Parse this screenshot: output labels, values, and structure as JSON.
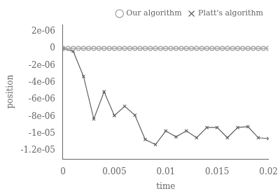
{
  "chart_data": {
    "type": "line",
    "xlabel": "time",
    "ylabel": "position",
    "xlim": [
      0,
      0.02
    ],
    "xticks": [
      0,
      0.005,
      0.01,
      0.015,
      0.02
    ],
    "ylim": [
      -1.3e-05,
      2.8e-06
    ],
    "yticks": [
      {
        "value": -1.2e-05,
        "label": "-1.2e-05"
      },
      {
        "value": -1e-05,
        "label": "-1e-05"
      },
      {
        "value": -8e-06,
        "label": "-8e-06"
      },
      {
        "value": -6e-06,
        "label": "-6e-06"
      },
      {
        "value": -4e-06,
        "label": "-4e-06"
      },
      {
        "value": -2e-06,
        "label": "-2e-06"
      },
      0,
      {
        "value": 2e-06,
        "label": "2e-06"
      }
    ],
    "grid": false,
    "legend": "upper right",
    "series": [
      {
        "name": "Our algorithm",
        "color": "#a0a0a0",
        "marker": "circle",
        "line_style": "solid",
        "x": [
          0.0,
          0.0005,
          0.001,
          0.0015,
          0.002,
          0.0025,
          0.003,
          0.0035,
          0.004,
          0.0045,
          0.005,
          0.0055,
          0.006,
          0.0065,
          0.007,
          0.0075,
          0.008,
          0.0085,
          0.009,
          0.0095,
          0.01,
          0.0105,
          0.011,
          0.0115,
          0.012,
          0.0125,
          0.013,
          0.0135,
          0.014,
          0.0145,
          0.015,
          0.0155,
          0.016,
          0.0165,
          0.017,
          0.0175,
          0.018,
          0.0185,
          0.019,
          0.0195,
          0.02
        ],
        "values": [
          0.0,
          0.0,
          0.0,
          0.0,
          0.0,
          0.0,
          0.0,
          0.0,
          0.0,
          0.0,
          0.0,
          0.0,
          0.0,
          0.0,
          0.0,
          0.0,
          0.0,
          0.0,
          0.0,
          0.0,
          0.0,
          0.0,
          0.0,
          0.0,
          0.0,
          0.0,
          0.0,
          0.0,
          0.0,
          0.0,
          0.0,
          0.0,
          0.0,
          0.0,
          0.0,
          0.0,
          0.0,
          0.0,
          0.0,
          0.0,
          0.0
        ]
      },
      {
        "name": "Platt's algorithm",
        "color": "#606060",
        "marker": "cross",
        "line_style": "solid",
        "x": [
          0.0,
          0.001,
          0.002,
          0.003,
          0.004,
          0.005,
          0.006,
          0.007,
          0.008,
          0.009,
          0.01,
          0.011,
          0.012,
          0.013,
          0.014,
          0.015,
          0.016,
          0.017,
          0.018,
          0.019,
          0.02
        ],
        "values": [
          0.0,
          -3.5e-07,
          -3.3e-06,
          -8.3e-06,
          -5.1e-06,
          -7.9e-06,
          -6.8e-06,
          -7.85e-06,
          -1.07e-05,
          -1.13e-05,
          -9.7e-06,
          -1.04e-05,
          -9.7e-06,
          -1.05e-05,
          -9.3e-06,
          -9.3e-06,
          -1.05e-05,
          -9.3e-06,
          -9.2e-06,
          -1.05e-05,
          -1.06e-05
        ]
      }
    ]
  }
}
